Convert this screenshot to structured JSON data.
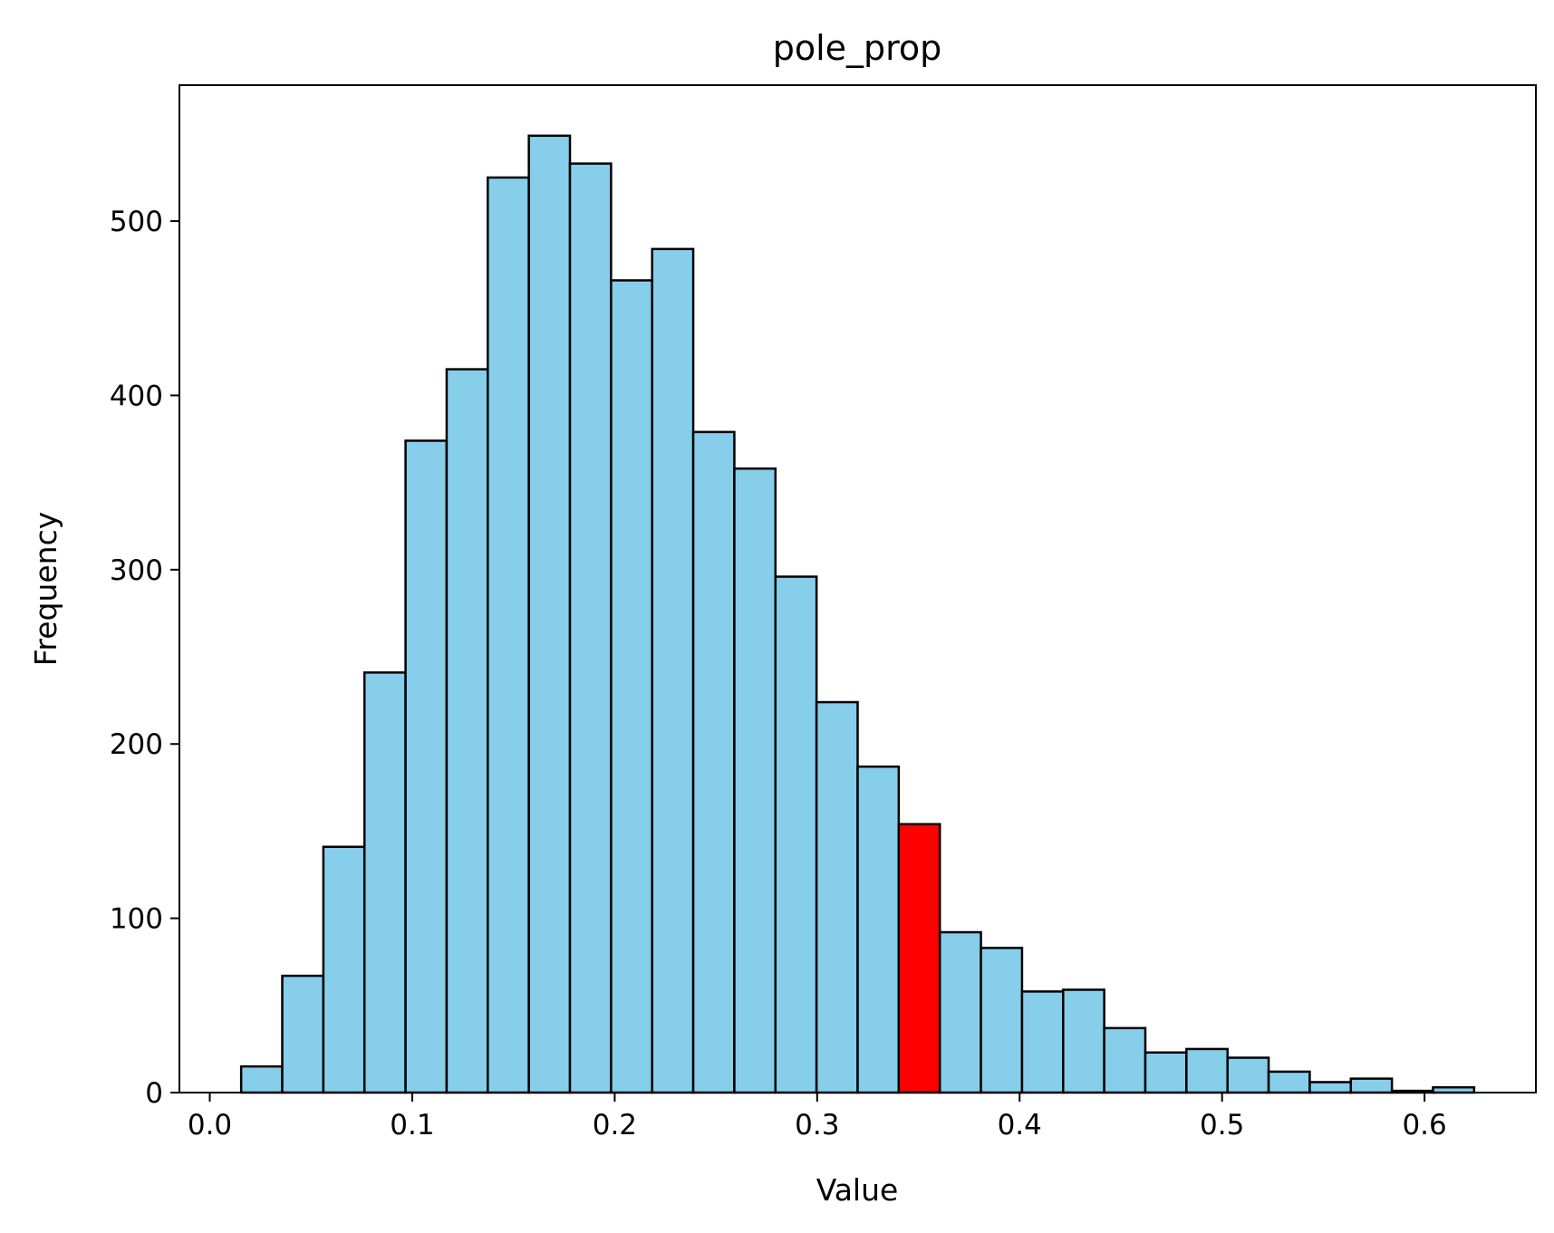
{
  "chart_data": {
    "type": "bar",
    "title": "pole_prop",
    "xlabel": "Value",
    "ylabel": "Frequency",
    "xlim": [
      -0.015,
      0.655
    ],
    "ylim": [
      0,
      578
    ],
    "bin_edges": [
      0.0155,
      0.0358,
      0.0561,
      0.0764,
      0.0967,
      0.117,
      0.1373,
      0.1576,
      0.1779,
      0.1982,
      0.2185,
      0.2388,
      0.2591,
      0.2794,
      0.2997,
      0.32,
      0.3403,
      0.3606,
      0.3809,
      0.4012,
      0.4215,
      0.4418,
      0.4621,
      0.4824,
      0.5027,
      0.523,
      0.5433,
      0.5636,
      0.5839,
      0.6042,
      0.6245
    ],
    "values": [
      15,
      67,
      141,
      241,
      374,
      415,
      525,
      549,
      533,
      466,
      484,
      379,
      358,
      296,
      224,
      187,
      154,
      92,
      83,
      58,
      59,
      37,
      23,
      25,
      20,
      12,
      6,
      8,
      1,
      3
    ],
    "highlight_index": 16,
    "colors": {
      "bar": "#87ceeb",
      "highlight": "#ff0000",
      "edge": "#000000"
    },
    "x_ticks": [
      "0.0",
      "0.1",
      "0.2",
      "0.3",
      "0.4",
      "0.5",
      "0.6"
    ],
    "y_ticks": [
      "0",
      "100",
      "200",
      "300",
      "400",
      "500"
    ],
    "grid": false
  }
}
